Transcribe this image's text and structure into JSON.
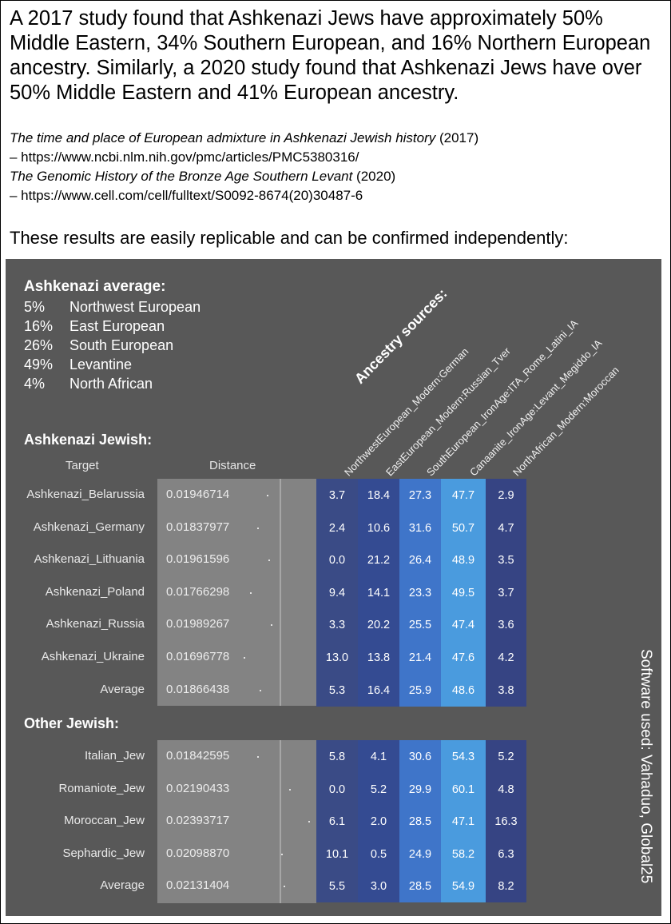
{
  "headline": "A 2017 study found that Ashkenazi Jews have approximately 50% Middle Eastern, 34% Southern European, and 16% Northern European ancestry. Similarly, a 2020 study found that Ashkenazi Jews have over 50% Middle Eastern and 41% European ancestry.",
  "references": {
    "ref1_title": "The time and place of European admixture in Ashkenazi Jewish history",
    "ref1_year": " (2017)",
    "ref1_url": "– https://www.ncbi.nlm.nih.gov/pmc/articles/PMC5380316/",
    "ref2_title": "The Genomic History of the Bronze Age Southern Levant",
    "ref2_year": " (2020)",
    "ref2_url": "– https://www.cell.com/cell/fulltext/S0092-8674(20)30487-6"
  },
  "confirm_text": "These results are easily replicable and can be confirmed independently:",
  "ashkenazi_average": {
    "title": "Ashkenazi average:",
    "rows": [
      {
        "pct": "5%",
        "label": "Northwest European"
      },
      {
        "pct": "16%",
        "label": "East European"
      },
      {
        "pct": "26%",
        "label": "South European"
      },
      {
        "pct": "49%",
        "label": "Levantine"
      },
      {
        "pct": "4%",
        "label": "North African"
      }
    ]
  },
  "ancestry_sources": {
    "title": "Ancestry sources:",
    "sources": [
      "NorthwestEuropean_Modern:German",
      "EastEuropean_Modern:Russian_Tver",
      "SouthEuropean_IronAge:ITA_Rome_Latini_IA",
      "Canaanite_IronAge:Levant_Megiddo_IA",
      "NorthAfrican_Modern:Moroccan"
    ]
  },
  "table": {
    "target_header": "Target",
    "distance_header": "Distance",
    "groups": [
      {
        "title": "Ashkenazi Jewish:",
        "rows": [
          {
            "target": "Ashkenazi_Belarussia",
            "distance": "0.01946714",
            "values": [
              "3.7",
              "18.4",
              "27.3",
              "47.7",
              "2.9"
            ]
          },
          {
            "target": "Ashkenazi_Germany",
            "distance": "0.01837977",
            "values": [
              "2.4",
              "10.6",
              "31.6",
              "50.7",
              "4.7"
            ]
          },
          {
            "target": "Ashkenazi_Lithuania",
            "distance": "0.01961596",
            "values": [
              "0.0",
              "21.2",
              "26.4",
              "48.9",
              "3.5"
            ]
          },
          {
            "target": "Ashkenazi_Poland",
            "distance": "0.01766298",
            "values": [
              "9.4",
              "14.1",
              "23.3",
              "49.5",
              "3.7"
            ]
          },
          {
            "target": "Ashkenazi_Russia",
            "distance": "0.01989267",
            "values": [
              "3.3",
              "20.2",
              "25.5",
              "47.4",
              "3.6"
            ]
          },
          {
            "target": "Ashkenazi_Ukraine",
            "distance": "0.01696778",
            "values": [
              "13.0",
              "13.8",
              "21.4",
              "47.6",
              "4.2"
            ]
          },
          {
            "target": "Average",
            "distance": "0.01866438",
            "values": [
              "5.3",
              "16.4",
              "25.9",
              "48.6",
              "3.8"
            ]
          }
        ]
      },
      {
        "title": "Other Jewish:",
        "rows": [
          {
            "target": "Italian_Jew",
            "distance": "0.01842595",
            "values": [
              "5.8",
              "4.1",
              "30.6",
              "54.3",
              "5.2"
            ]
          },
          {
            "target": "Romaniote_Jew",
            "distance": "0.02190433",
            "values": [
              "0.0",
              "5.2",
              "29.9",
              "60.1",
              "4.8"
            ]
          },
          {
            "target": "Moroccan_Jew",
            "distance": "0.02393717",
            "values": [
              "6.1",
              "2.0",
              "28.5",
              "47.1",
              "16.3"
            ]
          },
          {
            "target": "Sephardic_Jew",
            "distance": "0.02098870",
            "values": [
              "10.1",
              "0.5",
              "24.9",
              "58.2",
              "6.3"
            ]
          },
          {
            "target": "Average",
            "distance": "0.02131404",
            "values": [
              "5.5",
              "3.0",
              "28.5",
              "54.9",
              "8.2"
            ]
          }
        ]
      }
    ]
  },
  "software_text": "Software used: Vahaduo, Global25",
  "colors": {
    "panel": "#585858",
    "col_nw": "#3a4b86",
    "col_ee": "#344b92",
    "col_se": "#3f75c9",
    "col_lev": "#4a9bde",
    "col_na": "#364483"
  }
}
